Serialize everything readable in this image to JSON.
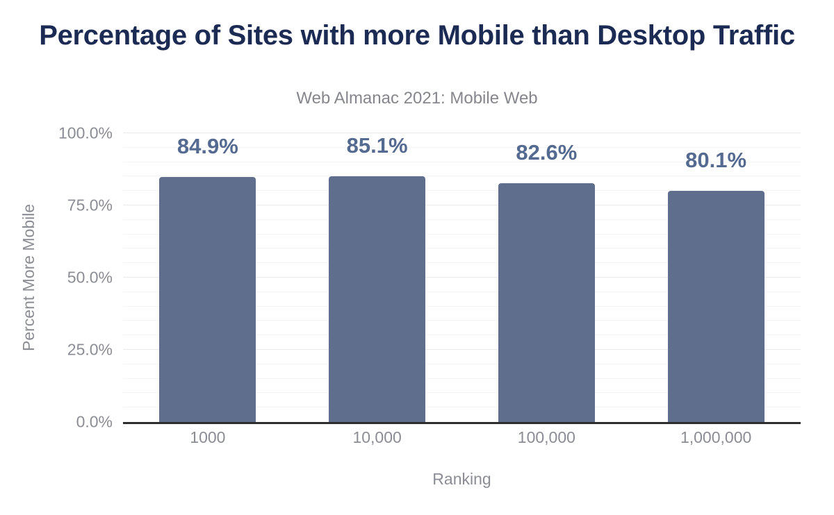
{
  "chart_data": {
    "type": "bar",
    "title": "Percentage of Sites with more Mobile than Desktop Traffic",
    "subtitle": "Web Almanac 2021: Mobile Web",
    "xlabel": "Ranking",
    "ylabel": "Percent More Mobile",
    "categories": [
      "1000",
      "10,000",
      "100,000",
      "1,000,000"
    ],
    "values": [
      84.9,
      85.1,
      82.6,
      80.1
    ],
    "value_labels": [
      "84.9%",
      "85.1%",
      "82.6%",
      "80.1%"
    ],
    "ylim": [
      0,
      100
    ],
    "y_ticks": [
      {
        "label": "0.0%",
        "value": 0
      },
      {
        "label": "25.0%",
        "value": 25
      },
      {
        "label": "50.0%",
        "value": 50
      },
      {
        "label": "75.0%",
        "value": 75
      },
      {
        "label": "100.0%",
        "value": 100
      }
    ],
    "grid": {
      "on": true,
      "minor_step": 5,
      "major_step": 25
    },
    "legend": "none",
    "colors": {
      "bar": "#5e6e8c",
      "value_label": "#546a90",
      "title": "#1c2b53",
      "subtitle": "#85878c",
      "tick_text": "#8b8d94",
      "axis_line": "#2e2e2e",
      "grid_minor": "#f4f4f5",
      "grid_major": "#eaeaec",
      "background": "#ffffff"
    }
  }
}
